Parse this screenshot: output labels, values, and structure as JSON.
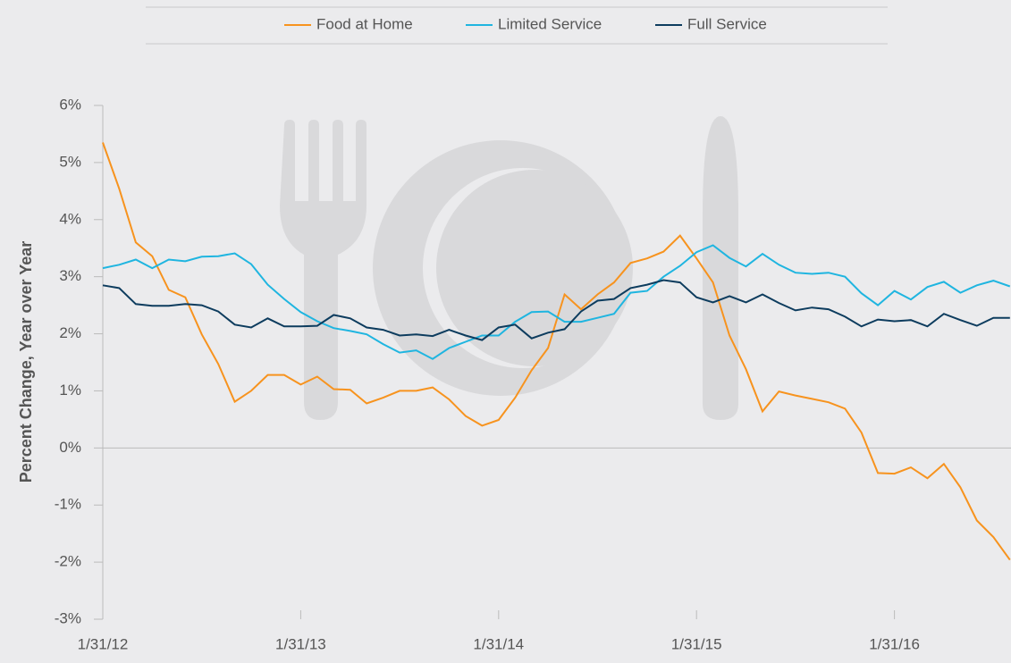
{
  "chart_data": {
    "type": "line",
    "y_label": "Percent Change, Year over Year",
    "categories": [
      "1/31/12",
      null,
      null,
      null,
      null,
      null,
      null,
      null,
      null,
      null,
      null,
      null,
      "1/31/13",
      null,
      null,
      null,
      null,
      null,
      null,
      null,
      null,
      null,
      null,
      null,
      "1/31/14",
      null,
      null,
      null,
      null,
      null,
      null,
      null,
      null,
      null,
      null,
      null,
      "1/31/15",
      null,
      null,
      null,
      null,
      null,
      null,
      null,
      null,
      null,
      null,
      null,
      "1/31/16",
      null,
      null,
      null,
      null,
      null,
      null,
      null
    ],
    "ylim": [
      -3,
      6
    ],
    "yticks": [
      {
        "value": -3,
        "label": "-3%"
      },
      {
        "value": -2,
        "label": "-2%"
      },
      {
        "value": -1,
        "label": "-1%"
      },
      {
        "value": 0,
        "label": "0%"
      },
      {
        "value": 1,
        "label": "1%"
      },
      {
        "value": 2,
        "label": "2%"
      },
      {
        "value": 3,
        "label": "3%"
      },
      {
        "value": 4,
        "label": "4%"
      },
      {
        "value": 5,
        "label": "5%"
      },
      {
        "value": 6,
        "label": "6%"
      }
    ],
    "series": [
      {
        "name": "Food at Home",
        "color": "#f7931e",
        "values": [
          5.35,
          4.54,
          3.6,
          3.36,
          2.77,
          2.64,
          1.99,
          1.47,
          0.81,
          1.0,
          1.28,
          1.28,
          1.11,
          1.25,
          1.03,
          1.02,
          0.78,
          0.88,
          1.0,
          1.0,
          1.06,
          0.85,
          0.56,
          0.39,
          0.49,
          0.88,
          1.36,
          1.75,
          2.69,
          2.43,
          2.69,
          2.9,
          3.24,
          3.32,
          3.44,
          3.72,
          3.32,
          2.9,
          1.97,
          1.38,
          0.64,
          0.99,
          0.92,
          0.86,
          0.8,
          0.69,
          0.27,
          -0.44,
          -0.45,
          -0.34,
          -0.53,
          -0.28,
          -0.69,
          -1.27,
          -1.56,
          -1.96
        ]
      },
      {
        "name": "Limited Service",
        "color": "#1fb5e0",
        "values": [
          3.15,
          3.21,
          3.3,
          3.15,
          3.3,
          3.27,
          3.35,
          3.36,
          3.41,
          3.22,
          2.86,
          2.61,
          2.38,
          2.22,
          2.1,
          2.05,
          1.99,
          1.82,
          1.67,
          1.71,
          1.56,
          1.75,
          1.86,
          1.97,
          1.97,
          2.21,
          2.38,
          2.39,
          2.21,
          2.21,
          2.28,
          2.35,
          2.72,
          2.75,
          3.0,
          3.19,
          3.43,
          3.55,
          3.33,
          3.18,
          3.4,
          3.21,
          3.07,
          3.05,
          3.07,
          3.0,
          2.71,
          2.5,
          2.75,
          2.6,
          2.82,
          2.91,
          2.72,
          2.85,
          2.93,
          2.83
        ]
      },
      {
        "name": "Full Service",
        "color": "#0d3c5e",
        "values": [
          2.85,
          2.8,
          2.52,
          2.49,
          2.49,
          2.52,
          2.5,
          2.39,
          2.16,
          2.11,
          2.27,
          2.13,
          2.13,
          2.14,
          2.33,
          2.27,
          2.11,
          2.07,
          1.97,
          1.99,
          1.96,
          2.07,
          1.97,
          1.89,
          2.11,
          2.16,
          1.92,
          2.02,
          2.08,
          2.39,
          2.58,
          2.61,
          2.8,
          2.86,
          2.94,
          2.9,
          2.64,
          2.55,
          2.66,
          2.55,
          2.69,
          2.54,
          2.41,
          2.46,
          2.43,
          2.3,
          2.13,
          2.25,
          2.22,
          2.24,
          2.13,
          2.35,
          2.24,
          2.14,
          2.28,
          2.28
        ]
      }
    ]
  }
}
